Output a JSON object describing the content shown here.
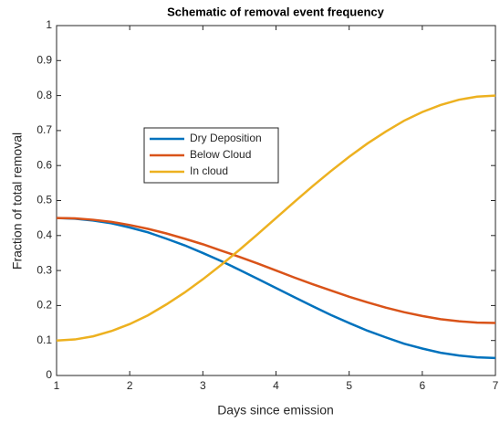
{
  "chart_data": {
    "type": "line",
    "title": "Schematic of removal event frequency",
    "xlabel": "Days since emission",
    "ylabel": "Fraction of total removal",
    "x": [
      1,
      1.25,
      1.5,
      1.75,
      2,
      2.25,
      2.5,
      2.75,
      3,
      3.25,
      3.5,
      3.75,
      4,
      4.25,
      4.5,
      4.75,
      5,
      5.25,
      5.5,
      5.75,
      6,
      6.25,
      6.5,
      6.75,
      7
    ],
    "series": [
      {
        "name": "Dry Deposition",
        "color": "#0072bd",
        "values": [
          0.45,
          0.448,
          0.443,
          0.435,
          0.423,
          0.409,
          0.391,
          0.372,
          0.35,
          0.327,
          0.302,
          0.276,
          0.25,
          0.224,
          0.198,
          0.173,
          0.15,
          0.128,
          0.109,
          0.091,
          0.077,
          0.065,
          0.057,
          0.052,
          0.05
        ]
      },
      {
        "name": "Below Cloud",
        "color": "#d95319",
        "values": [
          0.45,
          0.449,
          0.445,
          0.439,
          0.43,
          0.419,
          0.406,
          0.391,
          0.375,
          0.357,
          0.339,
          0.32,
          0.3,
          0.28,
          0.261,
          0.243,
          0.225,
          0.209,
          0.194,
          0.181,
          0.17,
          0.161,
          0.155,
          0.151,
          0.15
        ]
      },
      {
        "name": "In cloud",
        "color": "#edb120",
        "values": [
          0.1,
          0.103,
          0.112,
          0.127,
          0.147,
          0.172,
          0.203,
          0.237,
          0.275,
          0.316,
          0.359,
          0.404,
          0.45,
          0.496,
          0.541,
          0.584,
          0.625,
          0.663,
          0.697,
          0.728,
          0.753,
          0.773,
          0.788,
          0.797,
          0.8
        ]
      }
    ],
    "xlim": [
      1,
      7
    ],
    "xticks": [
      1,
      2,
      3,
      4,
      5,
      6,
      7
    ],
    "ylim": [
      0,
      1
    ],
    "yticks": [
      0,
      0.1,
      0.2,
      0.3,
      0.4,
      0.5,
      0.6,
      0.7,
      0.8,
      0.9,
      1
    ],
    "grid": false,
    "legend": "upper left"
  }
}
